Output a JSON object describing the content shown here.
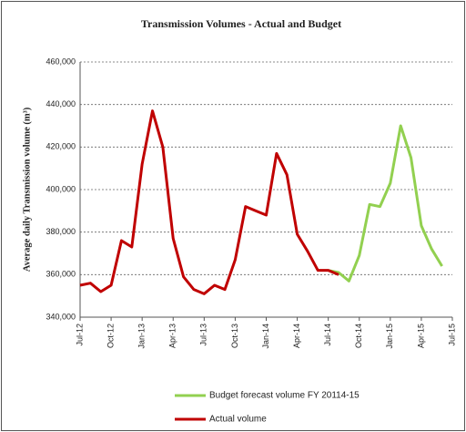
{
  "chart_data": {
    "type": "line",
    "title": "Transmission Volumes - Actual and Budget",
    "y_label": "Average daily Transmission volume (m³)",
    "categories": [
      "Jul-12",
      null,
      null,
      "Oct-12",
      null,
      null,
      "Jan-13",
      null,
      null,
      "Apr-13",
      null,
      null,
      "Jul-13",
      null,
      null,
      "Oct-13",
      null,
      null,
      "Jan-14",
      null,
      null,
      "Apr-14",
      null,
      null,
      "Jul-14",
      null,
      null,
      "Oct-14",
      null,
      null,
      "Jan-15",
      null,
      null,
      "Apr-15",
      null,
      null,
      "Jul-15"
    ],
    "series": [
      {
        "name": "Budget forecast volume FY 20114-15",
        "color": "#92d050",
        "values": [
          null,
          null,
          null,
          null,
          null,
          null,
          null,
          null,
          null,
          null,
          null,
          null,
          null,
          null,
          null,
          null,
          null,
          null,
          null,
          null,
          null,
          null,
          null,
          null,
          362000,
          361000,
          357000,
          369000,
          393000,
          392000,
          403000,
          430000,
          415000,
          383000,
          372000,
          364000,
          null
        ]
      },
      {
        "name": "Actual volume",
        "color": "#c00000",
        "values": [
          355000,
          356000,
          352000,
          355000,
          376000,
          373000,
          412000,
          437000,
          420000,
          377000,
          359000,
          353000,
          351000,
          355000,
          353000,
          367000,
          392000,
          390000,
          388000,
          417000,
          407000,
          379000,
          371000,
          362000,
          362000,
          360000,
          null,
          null,
          null,
          null,
          null,
          null,
          null,
          null,
          null,
          null,
          null
        ]
      }
    ],
    "ylim": [
      340000,
      460000
    ],
    "yticks": [
      {
        "value": 340000,
        "label": "340,000"
      },
      {
        "value": 360000,
        "label": "360,000"
      },
      {
        "value": 380000,
        "label": "380,000"
      },
      {
        "value": 400000,
        "label": "400,000"
      },
      {
        "value": 420000,
        "label": "420,000"
      },
      {
        "value": 440000,
        "label": "440,000"
      },
      {
        "value": 460000,
        "label": "460,000"
      }
    ],
    "grid": true
  }
}
